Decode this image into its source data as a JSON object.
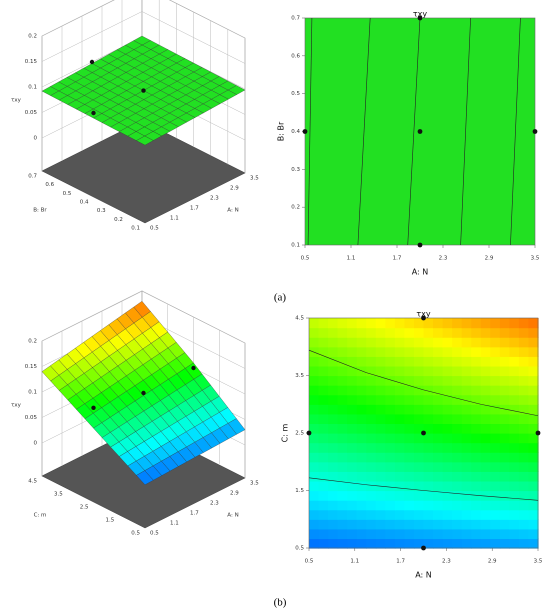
{
  "panel_labels": [
    "(a)",
    "(b)"
  ],
  "chart_data": [
    {
      "type": "surface3d",
      "xlabel": "A: N",
      "ylabel": "B: Br",
      "zlabel": "τxy",
      "xlim": [
        0.5,
        3.5
      ],
      "xticks": [
        0.5,
        1.1,
        1.7,
        2.3,
        2.9,
        3.5
      ],
      "ylim": [
        0.1,
        0.7
      ],
      "yticks": [
        0.1,
        0.2,
        0.3,
        0.4,
        0.5,
        0.6,
        0.7
      ],
      "zlim": [
        0,
        0.2
      ],
      "zticks": [
        0,
        0.05,
        0.1,
        0.15,
        0.2
      ],
      "x": [
        0.5,
        2,
        3.5
      ],
      "y": [
        0.1,
        0.4,
        0.7
      ],
      "z": [
        [
          0.088,
          0.093,
          0.098
        ],
        [
          0.09,
          0.095,
          0.1
        ],
        [
          0.092,
          0.097,
          0.102
        ]
      ],
      "color": "#22e022",
      "points": {
        "x": [
          0.5,
          2,
          2
        ],
        "y": [
          0.4,
          0.7,
          0.4
        ],
        "z": [
          0.1,
          0.1,
          0.095
        ]
      }
    },
    {
      "type": "contour",
      "title": "τxy",
      "xlabel": "A: N",
      "ylabel": "B: Br",
      "xlim": [
        0.5,
        3.5
      ],
      "xticks": [
        0.5,
        1.1,
        1.7,
        2.3,
        2.9,
        3.5
      ],
      "ylim": [
        0.1,
        0.7
      ],
      "yticks": [
        0.1,
        0.2,
        0.3,
        0.4,
        0.5,
        0.6,
        0.7
      ],
      "color": "#22e022",
      "contours": [
        {
          "x": [
            0.54,
            0.59
          ],
          "y": [
            0.1,
            0.7
          ]
        },
        {
          "x": [
            1.19,
            1.35
          ],
          "y": [
            0.1,
            0.7
          ]
        },
        {
          "x": [
            1.84,
            2.0
          ],
          "y": [
            0.1,
            0.7
          ]
        },
        {
          "x": [
            2.53,
            2.66
          ],
          "y": [
            0.1,
            0.7
          ]
        },
        {
          "x": [
            3.18,
            3.31
          ],
          "y": [
            0.1,
            0.7
          ]
        }
      ],
      "points": {
        "x": [
          0.5,
          2,
          3.5,
          2,
          2
        ],
        "y": [
          0.4,
          0.4,
          0.4,
          0.1,
          0.7
        ]
      }
    },
    {
      "type": "surface3d",
      "xlabel": "A: N",
      "ylabel": "C: m",
      "zlabel": "τxy",
      "xlim": [
        0.5,
        3.5
      ],
      "xticks": [
        0.5,
        1.1,
        1.7,
        2.3,
        2.9,
        3.5
      ],
      "ylim": [
        0.5,
        4.5
      ],
      "yticks": [
        0.5,
        1.5,
        2.5,
        3.5,
        4.5
      ],
      "zlim": [
        0,
        0.2
      ],
      "zticks": [
        0,
        0.05,
        0.1,
        0.15,
        0.2
      ],
      "x": [
        0.5,
        2,
        3.5
      ],
      "y": [
        0.5,
        2.5,
        4.5
      ],
      "z": [
        [
          0.02,
          0.025,
          0.03
        ],
        [
          0.08,
          0.095,
          0.11
        ],
        [
          0.14,
          0.16,
          0.18
        ]
      ],
      "colormap": [
        "#0000ff",
        "#00ffff",
        "#00ff00",
        "#ffff00",
        "#ff0000"
      ],
      "points": {
        "x": [
          0.5,
          3.5,
          2
        ],
        "y": [
          2.5,
          2.5,
          2.5
        ],
        "z": [
          0.12,
          0.1,
          0.1
        ]
      }
    },
    {
      "type": "contour",
      "title": "τxy",
      "xlabel": "A: N",
      "ylabel": "C: m",
      "xlim": [
        0.5,
        3.5
      ],
      "xticks": [
        0.5,
        1.1,
        1.7,
        2.3,
        2.9,
        3.5
      ],
      "ylim": [
        0.5,
        4.5
      ],
      "yticks": [
        0.5,
        1.5,
        2.5,
        3.5,
        4.5
      ],
      "zlim": [
        0,
        0.2
      ],
      "x": [
        0.5,
        2,
        3.5
      ],
      "y": [
        0.5,
        2.5,
        4.5
      ],
      "z": [
        [
          0.02,
          0.025,
          0.03
        ],
        [
          0.08,
          0.095,
          0.11
        ],
        [
          0.14,
          0.16,
          0.18
        ]
      ],
      "colormap": [
        "#0000ff",
        "#00ffff",
        "#00ff00",
        "#ffff00",
        "#ff0000"
      ],
      "contours": [
        {
          "x": [
            0.5,
            1.25,
            2,
            2.75,
            3.5
          ],
          "y": [
            3.94,
            3.55,
            3.25,
            3.0,
            2.8
          ]
        },
        {
          "x": [
            0.5,
            1.25,
            2,
            2.75,
            3.5
          ],
          "y": [
            1.72,
            1.6,
            1.5,
            1.41,
            1.33
          ]
        }
      ],
      "points": {
        "x": [
          0.5,
          2,
          3.5,
          2,
          2
        ],
        "y": [
          2.5,
          2.5,
          2.5,
          0.5,
          4.5
        ]
      }
    }
  ]
}
